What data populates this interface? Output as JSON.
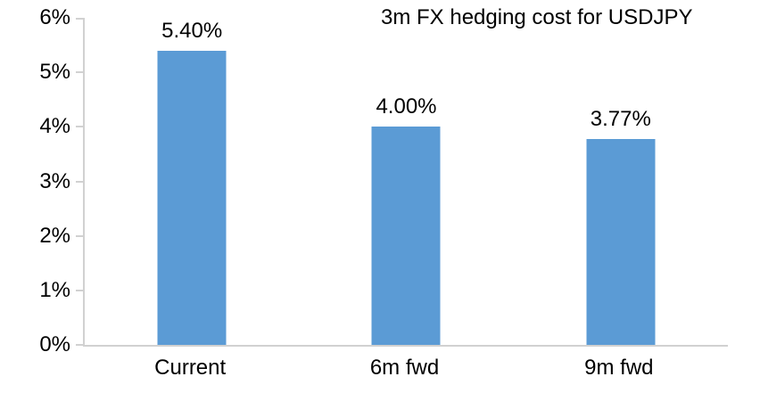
{
  "chart_data": {
    "type": "bar",
    "title": "3m FX hedging cost for USDJPY",
    "categories": [
      "Current",
      "6m fwd",
      "9m fwd"
    ],
    "values": [
      5.4,
      4.0,
      3.77
    ],
    "data_labels": [
      "5.40%",
      "4.00%",
      "3.77%"
    ],
    "ylim": [
      0,
      6
    ],
    "yticks": [
      {
        "value": 0,
        "label": "0%"
      },
      {
        "value": 1,
        "label": "1%"
      },
      {
        "value": 2,
        "label": "2%"
      },
      {
        "value": 3,
        "label": "3%"
      },
      {
        "value": 4,
        "label": "4%"
      },
      {
        "value": 5,
        "label": "5%"
      },
      {
        "value": 6,
        "label": "6%"
      }
    ],
    "xlabel": "",
    "ylabel": "",
    "grid": false,
    "legend": "none",
    "colors": {
      "bar": "#5b9bd5",
      "axis": "#d1d1d1",
      "text": "#000000",
      "background": "#ffffff"
    }
  }
}
